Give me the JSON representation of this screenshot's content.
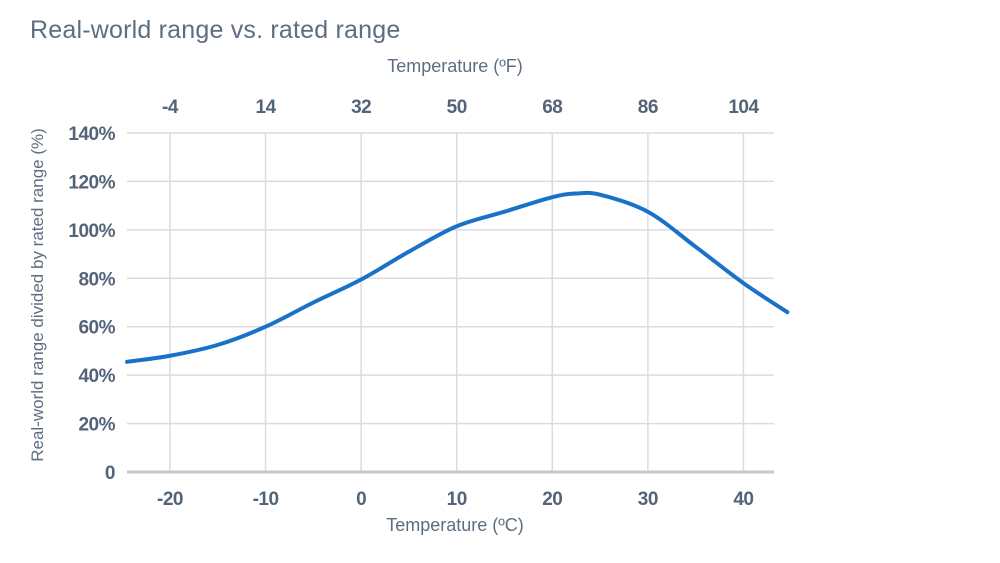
{
  "title": "Real-world range vs. rated range",
  "chart_data": {
    "type": "line",
    "title": "Real-world range vs. rated range",
    "x_axis_top": {
      "label": "Temperature (ºF)",
      "tick_labels": [
        "-4",
        "14",
        "32",
        "50",
        "68",
        "86",
        "104"
      ],
      "tick_values_c": [
        -20,
        -10,
        0,
        10,
        20,
        30,
        40
      ]
    },
    "x_axis_bottom": {
      "label": "Temperature (ºC)",
      "tick_labels": [
        "-20",
        "-10",
        "0",
        "10",
        "20",
        "30",
        "40"
      ],
      "tick_values_c": [
        -20,
        -10,
        0,
        10,
        20,
        30,
        40
      ]
    },
    "y_axis": {
      "label": "Real-world range divided by rated range (%)",
      "tick_labels": [
        "140%",
        "120%",
        "100%",
        "80%",
        "60%",
        "40%",
        "20%",
        "0"
      ],
      "tick_values": [
        140,
        120,
        100,
        80,
        60,
        40,
        20,
        0
      ]
    },
    "series": [
      {
        "name": "real-world-range-vs-temperature",
        "x_c": [
          -24.5,
          -20,
          -15,
          -10,
          -5,
          0,
          5,
          10,
          15,
          20,
          22.5,
          25,
          30,
          35,
          40,
          44.6
        ],
        "y_pct": [
          45.5,
          48,
          52.5,
          60,
          70,
          79.5,
          91,
          101.5,
          107.5,
          113.5,
          115,
          114.5,
          107.5,
          93,
          78,
          66
        ]
      }
    ],
    "xlim_c": [
      -24.5,
      43.2
    ],
    "ylim_pct": [
      0,
      140
    ],
    "grid": true,
    "legend": "none",
    "colors": {
      "line": "#1a72c8",
      "grid": "#dadce1",
      "axis": "#c4c8ce",
      "text": "#5d6e80",
      "tick_text": "#536478"
    }
  }
}
